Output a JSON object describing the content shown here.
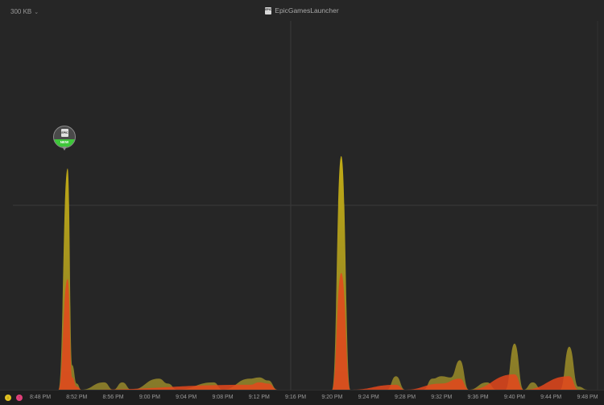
{
  "header": {
    "scale_label": "300 KB",
    "app_name": "EpicGamesLauncher",
    "logo_text": "EPIC"
  },
  "legend": [
    {
      "symbol": "↓",
      "color": "#e0c020",
      "name": "download-legend-dot"
    },
    {
      "symbol": "↑",
      "color": "#e0407a",
      "name": "upload-legend-dot"
    }
  ],
  "marker": {
    "logo_text": "EPIC",
    "label": "NEW"
  },
  "colors": {
    "download": "#c9b214",
    "download_dim": "#8a7d2a",
    "upload": "#e4481c",
    "grid": "#3a3a3a",
    "background": "#262626"
  },
  "chart_data": {
    "type": "area",
    "x_unit": "time",
    "x_ticks": [
      "8:48 PM",
      "8:52 PM",
      "8:56 PM",
      "9:00 PM",
      "9:04 PM",
      "9:08 PM",
      "9:12 PM",
      "9:16 PM",
      "9:20 PM",
      "9:24 PM",
      "9:28 PM",
      "9:32 PM",
      "9:36 PM",
      "9:40 PM",
      "9:44 PM",
      "9:48 PM"
    ],
    "ylim": [
      0,
      600
    ],
    "y_unit": "KB",
    "gridline_labels": [
      "300 KB"
    ],
    "series": [
      {
        "key": "download",
        "points": [
          [
            "8:48 PM",
            0
          ],
          [
            "8:50 PM",
            0
          ],
          [
            "8:51 PM",
            360
          ],
          [
            "8:51:30 PM",
            40
          ],
          [
            "8:52 PM",
            10
          ],
          [
            "8:52:30 PM",
            0
          ],
          [
            "8:55 PM",
            12
          ],
          [
            "8:56 PM",
            0
          ],
          [
            "8:57 PM",
            12
          ],
          [
            "8:58 PM",
            0
          ],
          [
            "9:01 PM",
            18
          ],
          [
            "9:02 PM",
            10
          ],
          [
            "9:03 PM",
            0
          ],
          [
            "9:07 PM",
            12
          ],
          [
            "9:08 PM",
            0
          ],
          [
            "9:11 PM",
            18
          ],
          [
            "9:12 PM",
            20
          ],
          [
            "9:13 PM",
            15
          ],
          [
            "9:14 PM",
            0
          ],
          [
            "9:20 PM",
            0
          ],
          [
            "9:21 PM",
            380
          ],
          [
            "9:22 PM",
            0
          ],
          [
            "9:26 PM",
            0
          ],
          [
            "9:27 PM",
            22
          ],
          [
            "9:28 PM",
            0
          ],
          [
            "9:30 PM",
            0
          ],
          [
            "9:31 PM",
            18
          ],
          [
            "9:32 PM",
            22
          ],
          [
            "9:33 PM",
            20
          ],
          [
            "9:34 PM",
            48
          ],
          [
            "9:35 PM",
            0
          ],
          [
            "9:37 PM",
            12
          ],
          [
            "9:38 PM",
            0
          ],
          [
            "9:39 PM",
            0
          ],
          [
            "9:40 PM",
            75
          ],
          [
            "9:41 PM",
            0
          ],
          [
            "9:42 PM",
            12
          ],
          [
            "9:43 PM",
            0
          ],
          [
            "9:45 PM",
            0
          ],
          [
            "9:46 PM",
            70
          ],
          [
            "9:47 PM",
            5
          ],
          [
            "9:48 PM",
            0
          ]
        ]
      },
      {
        "key": "upload",
        "points": [
          [
            "8:48 PM",
            0
          ],
          [
            "8:50 PM",
            0
          ],
          [
            "8:51 PM",
            180
          ],
          [
            "8:51:30 PM",
            20
          ],
          [
            "8:52 PM",
            5
          ],
          [
            "8:52:30 PM",
            0
          ],
          [
            "9:11 PM",
            8
          ],
          [
            "9:12 PM",
            12
          ],
          [
            "9:13 PM",
            10
          ],
          [
            "9:14 PM",
            0
          ],
          [
            "9:20 PM",
            0
          ],
          [
            "9:21 PM",
            190
          ],
          [
            "9:22 PM",
            0
          ],
          [
            "9:27 PM",
            8
          ],
          [
            "9:28 PM",
            0
          ],
          [
            "9:32 PM",
            10
          ],
          [
            "9:34 PM",
            18
          ],
          [
            "9:35 PM",
            0
          ],
          [
            "9:40 PM",
            25
          ],
          [
            "9:41 PM",
            0
          ],
          [
            "9:46 PM",
            22
          ],
          [
            "9:47 PM",
            0
          ]
        ]
      }
    ]
  }
}
